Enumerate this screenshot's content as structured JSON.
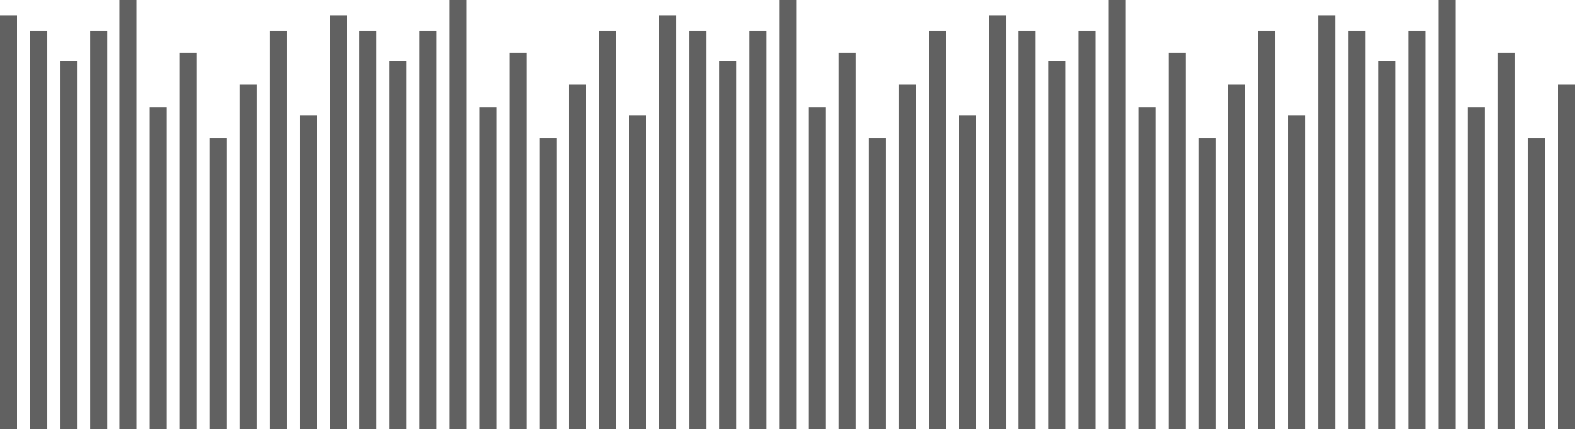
{
  "waveform": {
    "bar_color": "#616161",
    "max_level": 528,
    "levels": [
      509,
      490,
      453,
      490,
      528,
      396,
      463,
      358,
      424,
      490,
      386,
      509,
      490,
      453,
      490,
      528,
      396,
      463,
      358,
      424,
      490,
      386,
      509,
      490,
      453,
      490,
      528,
      396,
      463,
      358,
      424,
      490,
      386,
      509,
      490,
      453,
      490,
      528,
      396,
      463,
      358,
      424,
      490,
      386,
      509,
      490,
      453,
      490,
      528,
      396,
      463,
      358,
      424
    ]
  }
}
